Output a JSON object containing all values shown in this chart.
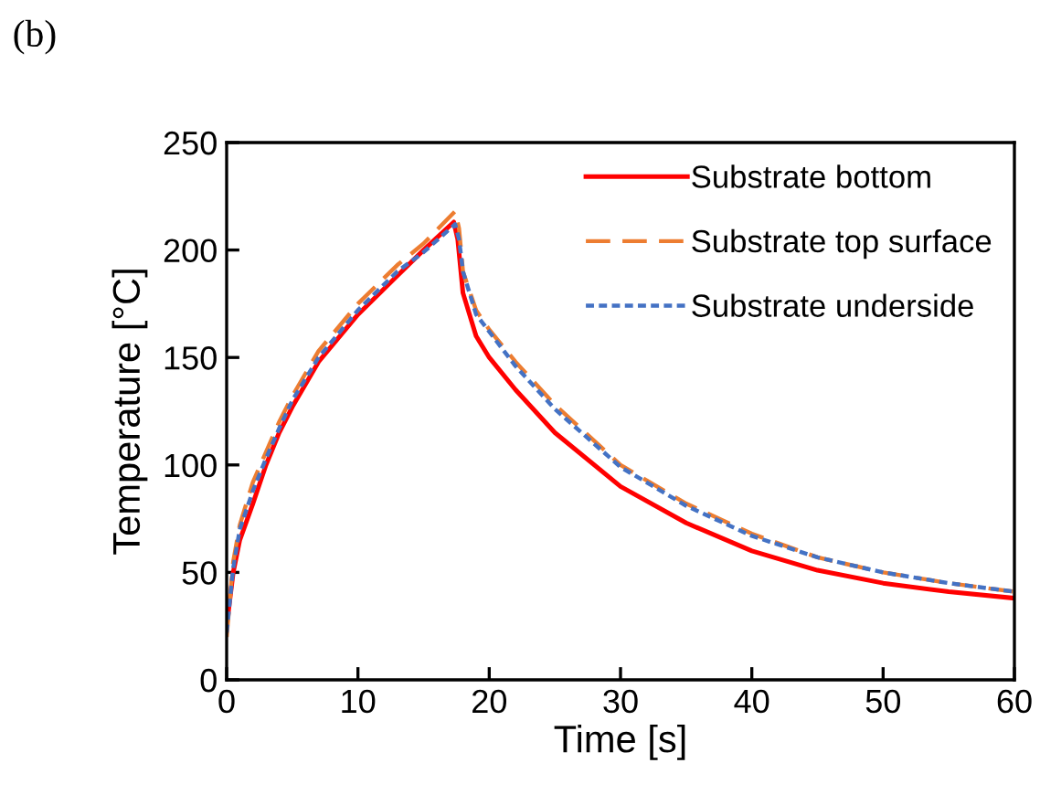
{
  "chart_data": {
    "type": "line",
    "xlabel": "Time [s]",
    "ylabel": "Temperature [°C]",
    "annotations": [
      "(b)"
    ],
    "xlim": [
      0,
      60
    ],
    "xticks": [
      0,
      10,
      20,
      30,
      40,
      50,
      60
    ],
    "ylim": [
      0,
      250
    ],
    "yticks": [
      0,
      50,
      100,
      150,
      200,
      250
    ],
    "grid": false,
    "legend": "top right",
    "marker": "none",
    "series": [
      {
        "name": "Substrate bottom",
        "color": "#ff0000",
        "line_style": "solid",
        "x": [
          0,
          0.5,
          1,
          2,
          3,
          4,
          5,
          7,
          10,
          13,
          15,
          17.3,
          17.6,
          18,
          19,
          20,
          22,
          25,
          30,
          35,
          40,
          45,
          50,
          55,
          60
        ],
        "values": [
          25,
          50,
          65,
          82,
          100,
          115,
          127,
          148,
          170,
          188,
          200,
          213,
          205,
          180,
          160,
          150,
          135,
          115,
          90,
          73,
          60,
          51,
          45,
          41,
          38
        ]
      },
      {
        "name": "Substrate top surface",
        "color": "#ed7d31",
        "line_style": "dashed",
        "x": [
          0,
          0.5,
          1,
          2,
          3,
          4,
          5,
          7,
          10,
          13,
          15,
          17.4,
          17.7,
          18,
          19,
          20,
          22,
          25,
          30,
          35,
          40,
          45,
          50,
          55,
          60
        ],
        "values": [
          20,
          55,
          72,
          92,
          106,
          120,
          132,
          153,
          175,
          193,
          203,
          218,
          210,
          190,
          172,
          163,
          148,
          128,
          100,
          82,
          68,
          57,
          50,
          45,
          41
        ]
      },
      {
        "name": "Substrate underside",
        "color": "#4472c4",
        "line_style": "dotted",
        "x": [
          0,
          0.5,
          1,
          2,
          3,
          4,
          5,
          7,
          10,
          13,
          15,
          17.4,
          17.7,
          18,
          19,
          20,
          22,
          25,
          30,
          35,
          40,
          45,
          50,
          55,
          60
        ],
        "values": [
          22,
          52,
          70,
          88,
          103,
          117,
          130,
          150,
          172,
          190,
          199,
          212,
          205,
          190,
          170,
          162,
          146,
          126,
          99,
          81,
          67,
          57,
          50,
          45,
          41
        ]
      }
    ]
  }
}
